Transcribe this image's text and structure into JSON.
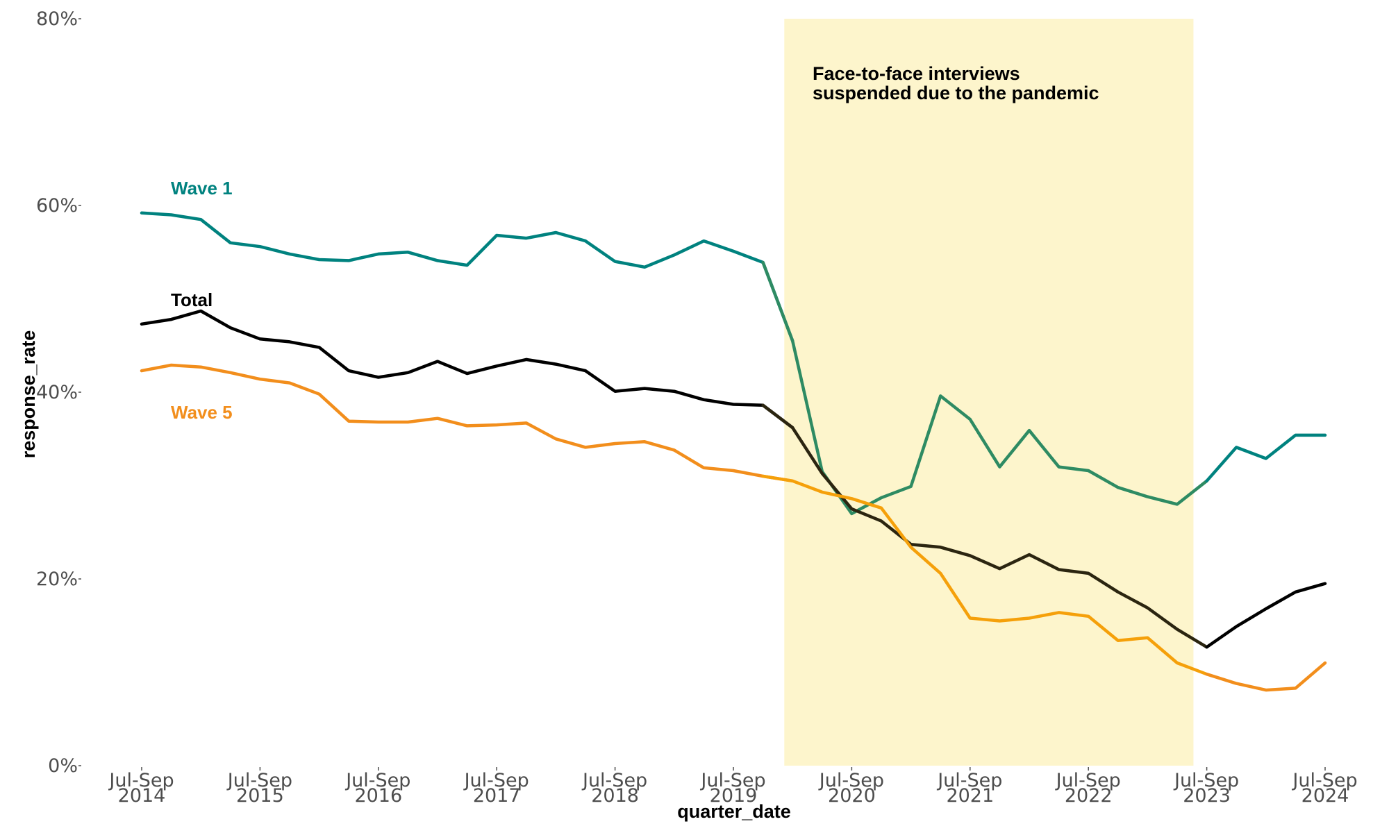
{
  "chart_data": {
    "type": "line",
    "xlabel": "quarter_date",
    "ylabel": "response_rate",
    "ylim": [
      0,
      80
    ],
    "y_ticks": [
      "0%",
      "20%",
      "40%",
      "60%",
      "80%"
    ],
    "y_tick_values": [
      0,
      20,
      40,
      60,
      80
    ],
    "x_ticks": [
      {
        "period": "Jul-Sep",
        "year": "2014"
      },
      {
        "period": "Jul-Sep",
        "year": "2015"
      },
      {
        "period": "Jul-Sep",
        "year": "2016"
      },
      {
        "period": "Jul-Sep",
        "year": "2017"
      },
      {
        "period": "Jul-Sep",
        "year": "2018"
      },
      {
        "period": "Jul-Sep",
        "year": "2019"
      },
      {
        "period": "Jul-Sep",
        "year": "2020"
      },
      {
        "period": "Jul-Sep",
        "year": "2021"
      },
      {
        "period": "Jul-Sep",
        "year": "2022"
      },
      {
        "period": "Jul-Sep",
        "year": "2023"
      },
      {
        "period": "Jul-Sep",
        "year": "2024"
      }
    ],
    "x": [
      "Jul-Sep 2014",
      "Oct-Dec 2014",
      "Jan-Mar 2015",
      "Apr-Jun 2015",
      "Jul-Sep 2015",
      "Oct-Dec 2015",
      "Jan-Mar 2016",
      "Apr-Jun 2016",
      "Jul-Sep 2016",
      "Oct-Dec 2016",
      "Jan-Mar 2017",
      "Apr-Jun 2017",
      "Jul-Sep 2017",
      "Oct-Dec 2017",
      "Jan-Mar 2018",
      "Apr-Jun 2018",
      "Jul-Sep 2018",
      "Oct-Dec 2018",
      "Jan-Mar 2019",
      "Apr-Jun 2019",
      "Jul-Sep 2019",
      "Oct-Dec 2019",
      "Jan-Mar 2020",
      "Apr-Jun 2020",
      "Jul-Sep 2020",
      "Oct-Dec 2020",
      "Jan-Mar 2021",
      "Apr-Jun 2021",
      "Jul-Sep 2021",
      "Oct-Dec 2021",
      "Jan-Mar 2022",
      "Apr-Jun 2022",
      "Jul-Sep 2022",
      "Oct-Dec 2022",
      "Jan-Mar 2023",
      "Apr-Jun 2023",
      "Jul-Sep 2023",
      "Oct-Dec 2023",
      "Jan-Mar 2024",
      "Apr-Jun 2024",
      "Jul-Sep 2024"
    ],
    "series": [
      {
        "name": "Wave 1",
        "color": "#00827f",
        "shaded_color": "#2e8b63",
        "values": [
          59.2,
          59.0,
          58.5,
          56.0,
          55.6,
          54.8,
          54.2,
          54.1,
          54.8,
          55.0,
          54.1,
          53.6,
          56.8,
          56.5,
          57.1,
          56.2,
          54.0,
          53.4,
          54.7,
          56.2,
          55.1,
          53.9,
          45.5,
          31.5,
          27.0,
          28.7,
          29.9,
          39.6,
          37.1,
          32.0,
          35.9,
          32.0,
          31.6,
          29.8,
          28.8,
          28.0,
          30.5,
          34.1,
          32.9,
          35.4,
          35.4
        ]
      },
      {
        "name": "Total",
        "color": "#000000",
        "shaded_color": "#2b2510",
        "values": [
          47.3,
          47.8,
          48.7,
          46.9,
          45.7,
          45.4,
          44.8,
          42.3,
          41.6,
          42.1,
          43.3,
          42.0,
          42.8,
          43.5,
          43.0,
          42.3,
          40.1,
          40.4,
          40.1,
          39.2,
          38.7,
          38.6,
          36.2,
          31.3,
          27.5,
          26.2,
          23.7,
          23.4,
          22.5,
          21.1,
          22.6,
          21.0,
          20.6,
          18.6,
          16.9,
          14.6,
          12.7,
          14.9,
          16.8,
          18.6,
          19.5
        ]
      },
      {
        "name": "Wave 5",
        "color": "#f28e1c",
        "shaded_color": "#f5a00a",
        "values": [
          42.3,
          42.9,
          42.7,
          42.1,
          41.4,
          41.0,
          39.8,
          36.9,
          36.8,
          36.8,
          37.2,
          36.4,
          36.5,
          36.7,
          35.0,
          34.1,
          34.5,
          34.7,
          33.8,
          31.9,
          31.6,
          31.0,
          30.5,
          29.3,
          28.6,
          27.6,
          23.4,
          20.6,
          15.8,
          15.5,
          15.8,
          16.4,
          16.0,
          13.4,
          13.7,
          11.0,
          9.8,
          8.8,
          8.1,
          8.3,
          11.0
        ]
      }
    ],
    "series_labels": [
      {
        "text": "Wave 1",
        "color": "#00827f"
      },
      {
        "text": "Total",
        "color": "#000000"
      },
      {
        "text": "Wave 5",
        "color": "#f28e1c"
      }
    ],
    "shaded_region": {
      "from": "Jan-Mar 2020",
      "to": "Apr-Jun 2023",
      "color": "#fdf5cc",
      "label_line1": "Face-to-face interviews",
      "label_line2": "suspended due to the pandemic"
    },
    "grid": false,
    "legend": "none"
  }
}
